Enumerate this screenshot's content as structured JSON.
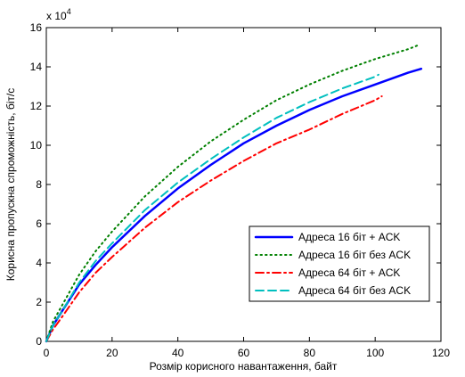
{
  "chart_data": {
    "type": "line",
    "title": "",
    "xlabel": "Розмір корисного навантаження, байт",
    "ylabel": "Корисна пропускна спроможність, біт/с",
    "y_multiplier_label": "x 10",
    "y_multiplier_exponent": "4",
    "xlim": [
      0,
      120
    ],
    "ylim": [
      0,
      16
    ],
    "x_ticks": [
      0,
      20,
      40,
      60,
      80,
      100,
      120
    ],
    "y_ticks": [
      0,
      2,
      4,
      6,
      8,
      10,
      12,
      14,
      16
    ],
    "grid": false,
    "legend_position": "lower-right",
    "series": [
      {
        "name": "Адреса 16 біт + ACK",
        "color": "#0000ff",
        "style": "solid",
        "x": [
          0,
          2,
          5,
          10,
          15,
          20,
          30,
          40,
          50,
          60,
          70,
          80,
          90,
          100,
          110,
          114
        ],
        "y": [
          0,
          0.8,
          1.6,
          2.9,
          3.9,
          4.8,
          6.4,
          7.8,
          9.0,
          10.1,
          11.0,
          11.8,
          12.5,
          13.1,
          13.7,
          13.9
        ]
      },
      {
        "name": "Адреса 16 біт без ACK",
        "color": "#008000",
        "style": "dotted",
        "x": [
          0,
          2,
          5,
          10,
          15,
          20,
          30,
          40,
          50,
          60,
          70,
          80,
          90,
          100,
          110,
          113
        ],
        "y": [
          0,
          1.0,
          1.9,
          3.4,
          4.6,
          5.6,
          7.4,
          8.9,
          10.2,
          11.3,
          12.3,
          13.1,
          13.8,
          14.4,
          14.9,
          15.1
        ]
      },
      {
        "name": "Адреса 64 біт + ACK",
        "color": "#ff0000",
        "style": "dashdot",
        "x": [
          0,
          2,
          5,
          10,
          15,
          20,
          30,
          40,
          50,
          60,
          70,
          80,
          90,
          100,
          102
        ],
        "y": [
          0,
          0.6,
          1.3,
          2.5,
          3.5,
          4.3,
          5.8,
          7.1,
          8.2,
          9.2,
          10.1,
          10.8,
          11.6,
          12.3,
          12.5
        ]
      },
      {
        "name": "Адреса 64 біт без ACK",
        "color": "#00bfbf",
        "style": "dashed",
        "x": [
          0,
          2,
          5,
          10,
          15,
          20,
          30,
          40,
          50,
          60,
          70,
          80,
          90,
          100,
          101
        ],
        "y": [
          0,
          0.8,
          1.6,
          3.0,
          4.1,
          5.0,
          6.7,
          8.1,
          9.3,
          10.4,
          11.4,
          12.2,
          12.9,
          13.5,
          13.6
        ]
      }
    ]
  }
}
